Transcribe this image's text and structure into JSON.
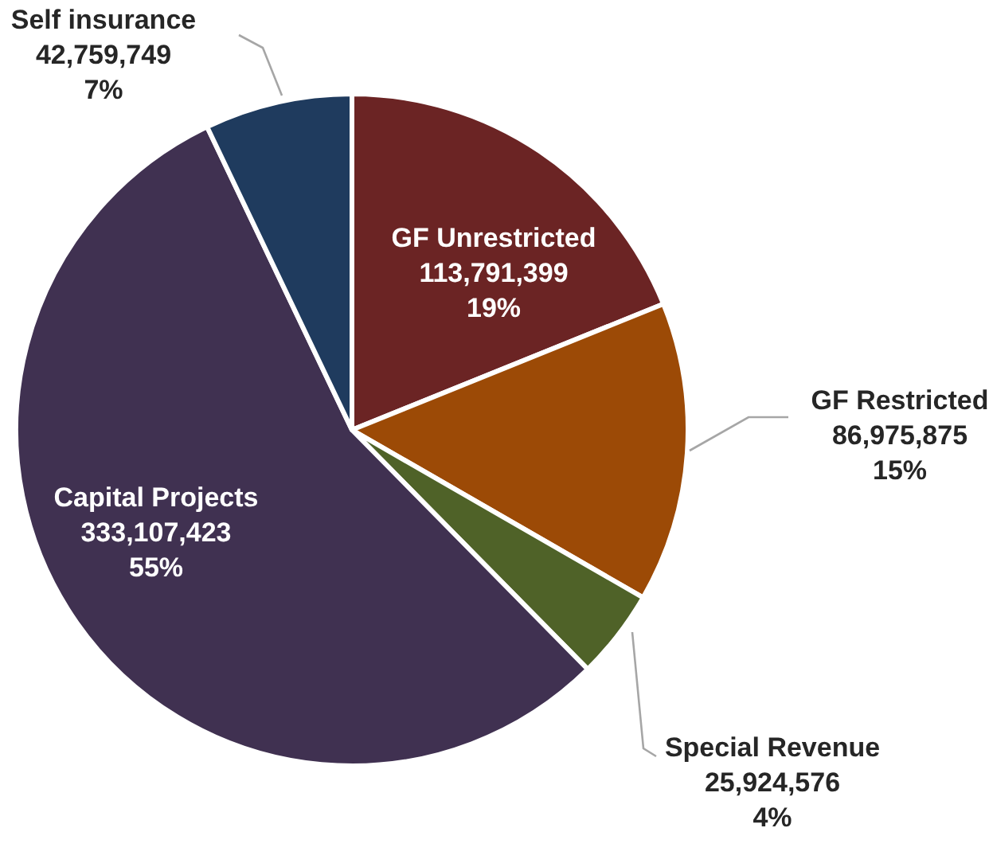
{
  "chart_data": {
    "type": "pie",
    "categories": [
      "GF Unrestricted",
      "GF Restricted",
      "Special Revenue",
      "Capital Projects",
      "Self insurance"
    ],
    "values": [
      113791399,
      86975875,
      25924576,
      333107423,
      42759749
    ],
    "colors": [
      "#6b2424",
      "#9c4a06",
      "#4f6228",
      "#403151",
      "#1f3b5e"
    ],
    "value_labels": [
      "113,791,399\n19%",
      "86,975,875\n15%",
      "25,924,576\n4%",
      "333,107,423\n55%",
      "42,759,749\n7%"
    ]
  }
}
